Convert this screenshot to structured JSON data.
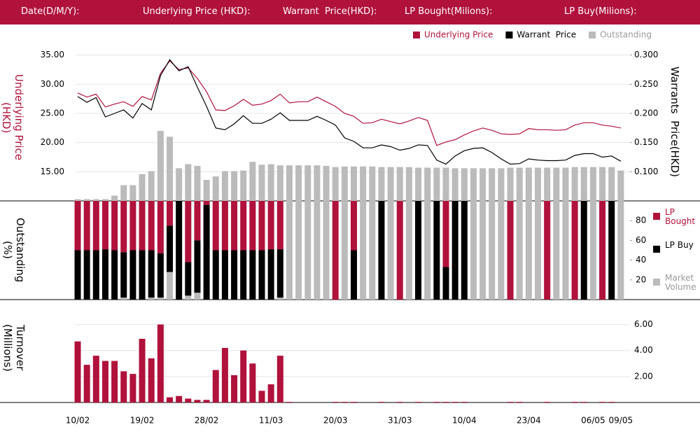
{
  "header": {
    "labels": [
      "Date(D/M/Y):",
      "Underlying Price (HKD):",
      "Warrant  Price(HKD):",
      "LP Bought(Milions):",
      "LP Buy(Milions):"
    ]
  },
  "chart_data": [
    {
      "type": "line",
      "y_label": "Underlying Price (HKD)",
      "y2_label": "Warrants  Price(HKD)",
      "ylim": [
        10,
        37
      ],
      "yticks": [
        {
          "value": 15,
          "label": "15.00"
        },
        {
          "value": 20,
          "label": "20.00"
        },
        {
          "value": 25,
          "label": "25.00"
        },
        {
          "value": 30,
          "label": "30.00"
        },
        {
          "value": 35,
          "label": "35.00"
        }
      ],
      "y2lim": [
        0.05,
        0.32
      ],
      "y2ticks": [
        {
          "value": 0.1,
          "label": "0.100"
        },
        {
          "value": 0.15,
          "label": "0.150"
        },
        {
          "value": 0.2,
          "label": "0.200"
        },
        {
          "value": 0.25,
          "label": "0.250"
        },
        {
          "value": 0.3,
          "label": "0.300"
        }
      ],
      "grid": true,
      "legend": "top-right",
      "series": [
        {
          "name": "Underlying Price",
          "color": "#b0123c",
          "type": "line",
          "values": [
            28.5,
            27.8,
            28.3,
            26.1,
            26.6,
            27.0,
            26.2,
            27.9,
            27.3,
            31.9,
            34.0,
            32.5,
            32.8,
            31.0,
            28.7,
            25.6,
            25.5,
            26.3,
            27.4,
            26.4,
            26.6,
            27.2,
            28.3,
            26.8,
            27.0,
            27.0,
            27.8,
            27.0,
            26.2,
            25.0,
            24.5,
            23.3,
            23.4,
            24.0,
            23.6,
            23.2,
            23.7,
            24.3,
            23.8,
            19.5,
            20.1,
            20.5,
            21.3,
            22.0,
            22.5,
            22.1,
            21.5,
            21.4,
            21.5,
            22.4,
            22.2,
            22.2,
            22.1,
            22.2,
            23.0,
            23.4,
            23.4,
            23.0,
            22.8,
            22.5
          ]
        },
        {
          "name": "Warrant  Price",
          "color": "#000000",
          "type": "line",
          "axis": "y2",
          "values": [
            0.229,
            0.219,
            0.227,
            0.194,
            0.2,
            0.206,
            0.192,
            0.217,
            0.206,
            0.265,
            0.292,
            0.273,
            0.28,
            0.245,
            0.212,
            0.175,
            0.172,
            0.182,
            0.196,
            0.183,
            0.183,
            0.19,
            0.201,
            0.188,
            0.188,
            0.188,
            0.195,
            0.188,
            0.18,
            0.158,
            0.152,
            0.141,
            0.141,
            0.146,
            0.143,
            0.137,
            0.14,
            0.146,
            0.145,
            0.12,
            0.113,
            0.127,
            0.136,
            0.14,
            0.141,
            0.133,
            0.122,
            0.113,
            0.114,
            0.122,
            0.12,
            0.119,
            0.119,
            0.12,
            0.128,
            0.131,
            0.131,
            0.125,
            0.127,
            0.118
          ]
        },
        {
          "name": "Outstanding",
          "color": "#bbbbbb",
          "type": "bar",
          "values": [
            10.3,
            10.3,
            10.3,
            10.3,
            10.9,
            12.7,
            12.7,
            14.6,
            15.1,
            22.0,
            21.0,
            15.6,
            16.3,
            16.0,
            13.6,
            14.2,
            15.1,
            15.1,
            15.2,
            16.7,
            16.2,
            16.3,
            16.1,
            16.1,
            16.1,
            16.1,
            16.1,
            16.0,
            15.8,
            15.9,
            15.9,
            15.9,
            15.9,
            15.8,
            15.8,
            15.8,
            15.8,
            15.7,
            15.7,
            15.7,
            15.7,
            15.6,
            15.6,
            15.6,
            15.6,
            15.6,
            15.6,
            15.7,
            15.7,
            15.7,
            15.7,
            15.7,
            15.7,
            15.7,
            15.8,
            15.8,
            15.8,
            15.8,
            15.8,
            15.2
          ]
        }
      ]
    },
    {
      "type": "stacked_bar",
      "y_label": "Outstanding (%)",
      "ylim": [
        0,
        100
      ],
      "yticks": [
        20,
        40,
        60,
        80
      ],
      "legend": "right",
      "series": [
        {
          "name": "LP Bought",
          "color": "#b0123c",
          "values": [
            50,
            50,
            50,
            49,
            50,
            52,
            50,
            50,
            50,
            53,
            25,
            0,
            62,
            40,
            4,
            50,
            50,
            50,
            50,
            50,
            50,
            49,
            49,
            0,
            0,
            0,
            0,
            0,
            100,
            0,
            50,
            0,
            0,
            0,
            0,
            100,
            0,
            0,
            0,
            0,
            67,
            0,
            0,
            0,
            0,
            0,
            0,
            100,
            0,
            0,
            0,
            100,
            0,
            0,
            100,
            0,
            0,
            100,
            0,
            0
          ]
        },
        {
          "name": "LP Buy",
          "color": "#000000",
          "values": [
            50,
            50,
            50,
            51,
            50,
            46,
            50,
            50,
            48,
            45,
            47,
            100,
            34,
            53,
            96,
            50,
            50,
            50,
            50,
            50,
            50,
            51,
            49,
            0,
            0,
            0,
            0,
            0,
            0,
            0,
            50,
            0,
            0,
            100,
            0,
            0,
            0,
            100,
            0,
            100,
            33,
            100,
            100,
            0,
            0,
            0,
            0,
            0,
            0,
            0,
            0,
            0,
            0,
            0,
            0,
            100,
            0,
            0,
            100,
            0
          ]
        },
        {
          "name": "Market Volume",
          "color": "#bbbbbb",
          "values": [
            0,
            0,
            0,
            0,
            0,
            2,
            0,
            0,
            2,
            2,
            28,
            0,
            4,
            7,
            0,
            0,
            0,
            0,
            0,
            0,
            0,
            0,
            2,
            100,
            100,
            100,
            100,
            100,
            0,
            100,
            0,
            100,
            100,
            0,
            100,
            0,
            100,
            0,
            100,
            0,
            0,
            0,
            0,
            100,
            100,
            100,
            100,
            0,
            100,
            100,
            100,
            0,
            100,
            100,
            0,
            0,
            100,
            0,
            0,
            100
          ]
        }
      ]
    },
    {
      "type": "bar",
      "y_label": "Turnover (Millions)",
      "ylim": [
        0,
        7
      ],
      "yticks": [
        {
          "value": 2,
          "label": "2.00"
        },
        {
          "value": 4,
          "label": "4.00"
        },
        {
          "value": 6,
          "label": "6.00"
        }
      ],
      "grid": true,
      "color": "#b0123c",
      "categories": [
        "10/02",
        null,
        null,
        null,
        null,
        null,
        null,
        "19/02",
        null,
        null,
        null,
        null,
        null,
        null,
        "28/02",
        null,
        null,
        null,
        null,
        null,
        null,
        "11/03",
        null,
        null,
        null,
        null,
        null,
        null,
        "20/03",
        null,
        null,
        null,
        null,
        null,
        null,
        "31/03",
        null,
        null,
        null,
        null,
        null,
        null,
        "10/04",
        null,
        null,
        null,
        null,
        null,
        null,
        "23/04",
        null,
        null,
        null,
        null,
        null,
        null,
        "06/05",
        null,
        null,
        "09/05"
      ],
      "values": [
        4.7,
        2.9,
        3.6,
        3.2,
        3.2,
        2.4,
        2.2,
        4.9,
        3.4,
        6.0,
        0.4,
        0.5,
        0.3,
        0.2,
        0.2,
        2.5,
        4.2,
        2.1,
        4.0,
        3.0,
        0.9,
        1.4,
        3.6,
        0.05,
        0,
        0,
        0,
        0,
        0.05,
        0.05,
        0.05,
        0,
        0,
        0.05,
        0,
        0.05,
        0,
        0.05,
        0,
        0.05,
        0.05,
        0.05,
        0.05,
        0,
        0,
        0,
        0,
        0.05,
        0.05,
        0,
        0,
        0.05,
        0,
        0,
        0.05,
        0.05,
        0,
        0.05,
        0.05,
        0
      ]
    }
  ]
}
